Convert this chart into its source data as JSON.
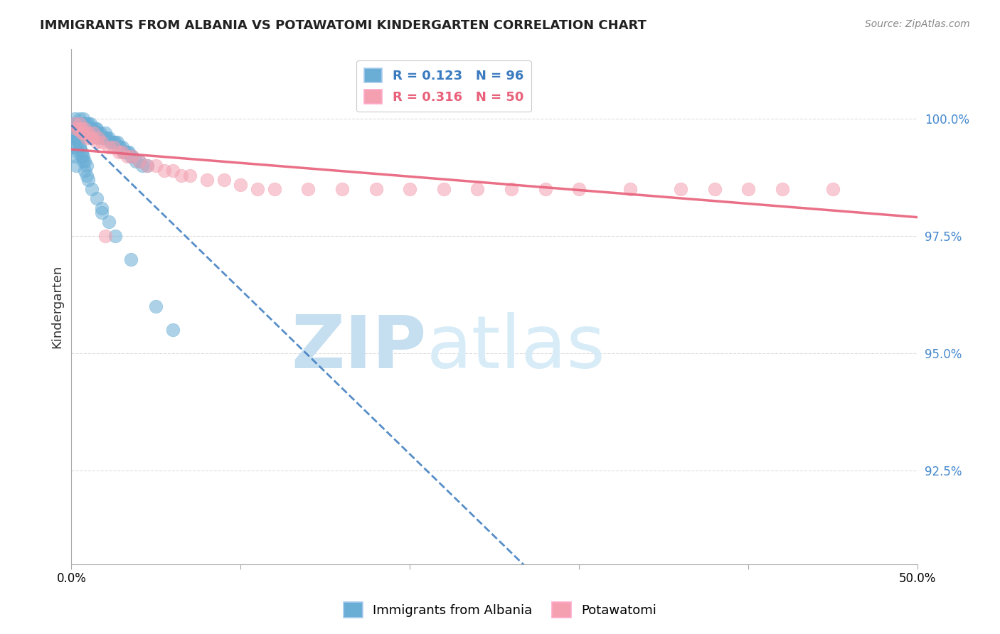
{
  "title": "IMMIGRANTS FROM ALBANIA VS POTAWATOMI KINDERGARTEN CORRELATION CHART",
  "source": "Source: ZipAtlas.com",
  "ylabel": "Kindergarten",
  "ytick_labels": [
    "92.5%",
    "95.0%",
    "97.5%",
    "100.0%"
  ],
  "ytick_values": [
    0.925,
    0.95,
    0.975,
    1.0
  ],
  "xlim": [
    0.0,
    0.5
  ],
  "ylim": [
    0.905,
    1.015
  ],
  "legend_R1": "R = 0.123",
  "legend_N1": "N = 96",
  "legend_R2": "R = 0.316",
  "legend_N2": "N = 50",
  "color_blue": "#6aaed6",
  "color_pink": "#f4a0b0",
  "color_blue_line": "#3a7abf",
  "color_pink_line": "#e8607a",
  "watermark_zip": "#c5dff0",
  "watermark_atlas": "#d8ecf8",
  "blue_scatter_x": [
    0.002,
    0.003,
    0.003,
    0.004,
    0.004,
    0.005,
    0.005,
    0.005,
    0.006,
    0.006,
    0.007,
    0.007,
    0.007,
    0.007,
    0.008,
    0.008,
    0.009,
    0.009,
    0.009,
    0.01,
    0.01,
    0.01,
    0.011,
    0.011,
    0.011,
    0.012,
    0.012,
    0.013,
    0.013,
    0.014,
    0.014,
    0.015,
    0.015,
    0.016,
    0.016,
    0.017,
    0.018,
    0.019,
    0.02,
    0.02,
    0.021,
    0.022,
    0.023,
    0.024,
    0.025,
    0.026,
    0.027,
    0.028,
    0.029,
    0.03,
    0.031,
    0.032,
    0.033,
    0.034,
    0.035,
    0.036,
    0.038,
    0.04,
    0.042,
    0.045,
    0.001,
    0.002,
    0.002,
    0.003,
    0.004,
    0.005,
    0.006,
    0.007,
    0.008,
    0.009,
    0.001,
    0.002,
    0.003,
    0.004,
    0.002,
    0.003,
    0.004,
    0.005,
    0.006,
    0.007,
    0.008,
    0.009,
    0.01,
    0.012,
    0.015,
    0.018,
    0.022,
    0.026,
    0.001,
    0.001,
    0.002,
    0.003,
    0.018,
    0.035,
    0.05,
    0.06
  ],
  "blue_scatter_y": [
    1.0,
    0.998,
    0.999,
    0.998,
    0.999,
    0.998,
    0.999,
    1.0,
    0.998,
    0.999,
    0.998,
    0.999,
    1.0,
    0.997,
    0.998,
    0.999,
    0.997,
    0.998,
    0.999,
    0.997,
    0.998,
    0.999,
    0.997,
    0.998,
    0.999,
    0.997,
    0.998,
    0.997,
    0.998,
    0.997,
    0.998,
    0.997,
    0.998,
    0.996,
    0.997,
    0.997,
    0.996,
    0.996,
    0.996,
    0.997,
    0.996,
    0.996,
    0.995,
    0.995,
    0.995,
    0.995,
    0.995,
    0.994,
    0.994,
    0.994,
    0.993,
    0.993,
    0.993,
    0.993,
    0.992,
    0.992,
    0.991,
    0.991,
    0.99,
    0.99,
    0.999,
    0.997,
    0.996,
    0.996,
    0.995,
    0.994,
    0.993,
    0.992,
    0.991,
    0.99,
    0.998,
    0.996,
    0.994,
    0.993,
    0.999,
    0.997,
    0.996,
    0.994,
    0.992,
    0.991,
    0.989,
    0.988,
    0.987,
    0.985,
    0.983,
    0.981,
    0.978,
    0.975,
    0.996,
    0.994,
    0.992,
    0.99,
    0.98,
    0.97,
    0.96,
    0.955
  ],
  "pink_scatter_x": [
    0.002,
    0.003,
    0.004,
    0.005,
    0.006,
    0.006,
    0.007,
    0.008,
    0.009,
    0.01,
    0.011,
    0.012,
    0.013,
    0.015,
    0.016,
    0.018,
    0.02,
    0.022,
    0.025,
    0.028,
    0.03,
    0.033,
    0.036,
    0.04,
    0.045,
    0.05,
    0.055,
    0.06,
    0.065,
    0.07,
    0.08,
    0.09,
    0.1,
    0.11,
    0.12,
    0.14,
    0.16,
    0.18,
    0.2,
    0.22,
    0.24,
    0.26,
    0.28,
    0.3,
    0.33,
    0.36,
    0.38,
    0.4,
    0.42,
    0.45
  ],
  "pink_scatter_y": [
    0.999,
    0.998,
    0.998,
    0.999,
    0.997,
    0.998,
    0.997,
    0.998,
    0.996,
    0.997,
    0.996,
    0.996,
    0.997,
    0.995,
    0.996,
    0.995,
    0.975,
    0.994,
    0.994,
    0.993,
    0.993,
    0.992,
    0.992,
    0.991,
    0.99,
    0.99,
    0.989,
    0.989,
    0.988,
    0.988,
    0.987,
    0.987,
    0.986,
    0.985,
    0.985,
    0.985,
    0.985,
    0.985,
    0.985,
    0.985,
    0.985,
    0.985,
    0.985,
    0.985,
    0.985,
    0.985,
    0.985,
    0.985,
    0.985,
    0.985
  ],
  "background_color": "#ffffff",
  "grid_color": "#dddddd"
}
